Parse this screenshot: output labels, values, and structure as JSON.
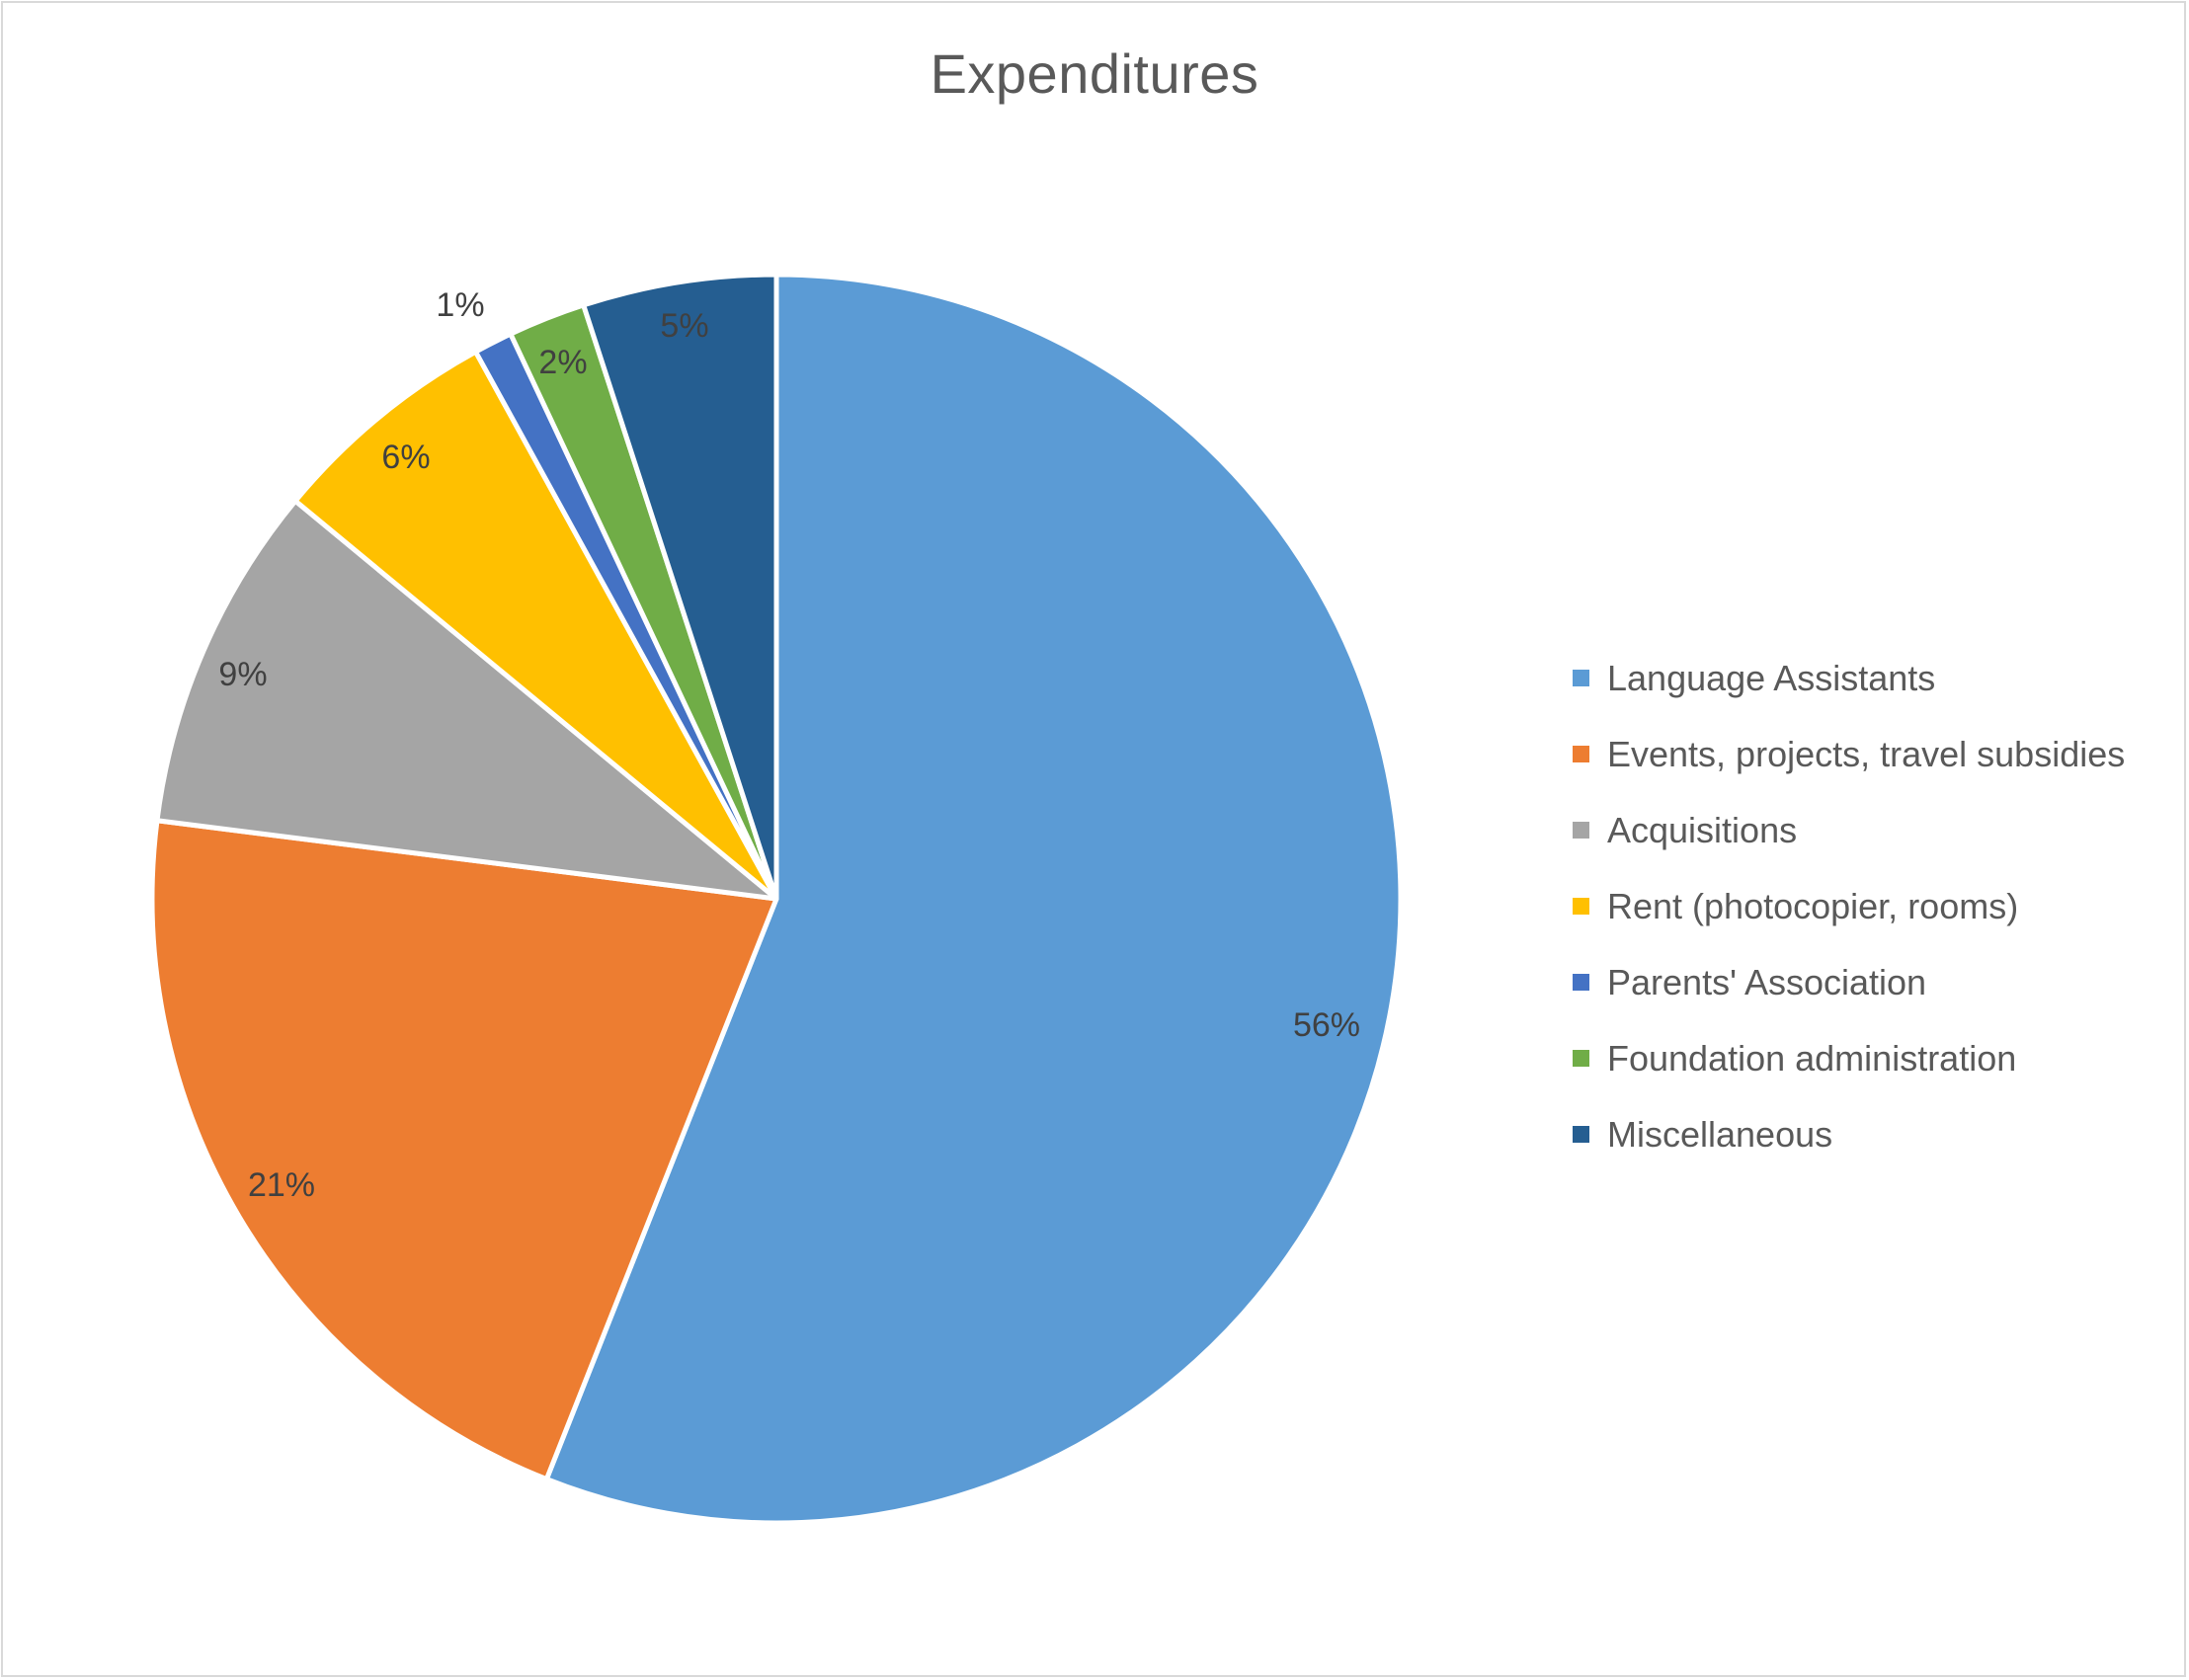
{
  "chart_data": {
    "type": "pie",
    "title": "Expenditures",
    "start_angle_deg": 0,
    "direction": "clockwise",
    "legend_position": "right",
    "slices": [
      {
        "label": "Language Assistants",
        "value": 56,
        "display": "56%",
        "color": "#5B9BD5"
      },
      {
        "label": "Events, projects, travel subsidies",
        "value": 21,
        "display": "21%",
        "color": "#ED7D31"
      },
      {
        "label": "Acquisitions",
        "value": 9,
        "display": "9%",
        "color": "#A5A5A5"
      },
      {
        "label": "Rent (photocopier, rooms)",
        "value": 6,
        "display": "6%",
        "color": "#FFC000"
      },
      {
        "label": "Parents' Association",
        "value": 1,
        "display": "1%",
        "color": "#4472C4"
      },
      {
        "label": "Foundation administration",
        "value": 2,
        "display": "2%",
        "color": "#70AD47"
      },
      {
        "label": "Miscellaneous",
        "value": 5,
        "display": "5%",
        "color": "#255E91"
      }
    ]
  }
}
